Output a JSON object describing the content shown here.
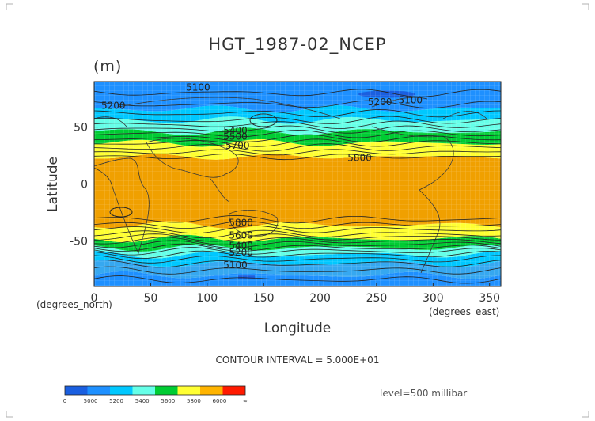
{
  "chart_data": {
    "type": "heatmap",
    "title": "HGT_1987-02_NCEP",
    "units": "(m)",
    "xlabel": "Longitude",
    "ylabel": "Latitude",
    "x_unit_label": "(degrees_east)",
    "y_unit_label": "(degrees_north)",
    "xlim": [
      0,
      360
    ],
    "ylim": [
      -90,
      90
    ],
    "x_ticks": [
      0,
      50,
      100,
      150,
      200,
      250,
      300,
      350
    ],
    "y_ticks": [
      50,
      0,
      -50
    ],
    "grid": true,
    "colorbar": {
      "ticks": [
        "0",
        "5000",
        "5200",
        "5400",
        "5600",
        "5800",
        "6000",
        "∞"
      ],
      "segment_colors": [
        "#1a5fe0",
        "#1e90ff",
        "#00c8ff",
        "#66ffe8",
        "#00cc33",
        "#ffff33",
        "#ffb400",
        "#ff1a00"
      ]
    },
    "zonal_bands": [
      {
        "lat": [
          -90,
          -80
        ],
        "color": "#1e90ff"
      },
      {
        "lat": [
          -80,
          -70
        ],
        "color": "#36a8f0"
      },
      {
        "lat": [
          -70,
          -62
        ],
        "color": "#00c8ff"
      },
      {
        "lat": [
          -62,
          -56
        ],
        "color": "#66ffe8"
      },
      {
        "lat": [
          -56,
          -48
        ],
        "color": "#00cc33"
      },
      {
        "lat": [
          -48,
          -36
        ],
        "color": "#ffff33"
      },
      {
        "lat": [
          -36,
          24
        ],
        "color": "#f0a000"
      },
      {
        "lat": [
          24,
          36
        ],
        "color": "#ffff33"
      },
      {
        "lat": [
          36,
          46
        ],
        "color": "#00cc33"
      },
      {
        "lat": [
          46,
          56
        ],
        "color": "#66ffe8"
      },
      {
        "lat": [
          56,
          66
        ],
        "color": "#00c8ff"
      },
      {
        "lat": [
          66,
          90
        ],
        "color": "#1e90ff"
      }
    ],
    "contour_labels": [
      {
        "text": "5100",
        "lon": 92,
        "lat": 82
      },
      {
        "text": "5200",
        "lon": 17,
        "lat": 66
      },
      {
        "text": "5400",
        "lon": 125,
        "lat": 44
      },
      {
        "text": "5500",
        "lon": 125,
        "lat": 39
      },
      {
        "text": "5700",
        "lon": 127,
        "lat": 31
      },
      {
        "text": "5800",
        "lon": 235,
        "lat": 20
      },
      {
        "text": "5200",
        "lon": 253,
        "lat": 69
      },
      {
        "text": "5100",
        "lon": 280,
        "lat": 71
      },
      {
        "text": "5800",
        "lon": 130,
        "lat": -37
      },
      {
        "text": "5600",
        "lon": 130,
        "lat": -48
      },
      {
        "text": "5400",
        "lon": 130,
        "lat": -57
      },
      {
        "text": "5200",
        "lon": 130,
        "lat": -63
      },
      {
        "text": "5100",
        "lon": 125,
        "lat": -74
      }
    ],
    "contour_interval_text": "CONTOUR INTERVAL = 5.000E+01",
    "level_text": "level=500 millibar"
  }
}
